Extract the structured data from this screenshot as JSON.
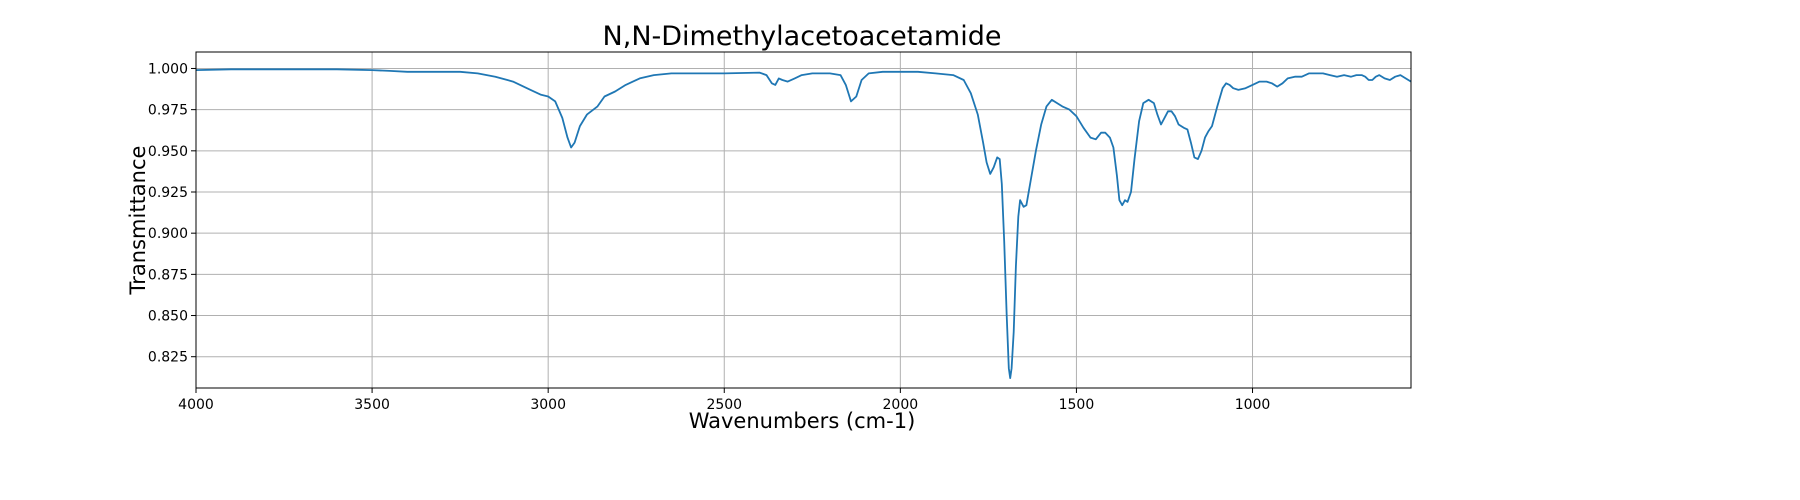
{
  "chart_data": {
    "type": "line",
    "title": "N,N-Dimethylacetoacetamide",
    "xlabel": "Wavenumbers (cm-1)",
    "ylabel": "Transmittance",
    "xlim": [
      4000,
      550
    ],
    "ylim": [
      0.806,
      1.01
    ],
    "x_reversed": true,
    "grid": true,
    "x_ticks": [
      4000,
      3500,
      3000,
      2500,
      2000,
      1500,
      1000
    ],
    "y_ticks": [
      0.825,
      0.85,
      0.875,
      0.9,
      0.925,
      0.95,
      0.975,
      1.0
    ],
    "x_tick_labels": [
      "4000",
      "3500",
      "3000",
      "2500",
      "2000",
      "1500",
      "1000"
    ],
    "y_tick_labels": [
      "0.825",
      "0.850",
      "0.875",
      "0.900",
      "0.925",
      "0.950",
      "0.975",
      "1.000"
    ],
    "series": [
      {
        "color": "#1f77b4",
        "points": [
          [
            4000,
            0.999
          ],
          [
            3900,
            0.9995
          ],
          [
            3800,
            0.9995
          ],
          [
            3700,
            0.9995
          ],
          [
            3600,
            0.9995
          ],
          [
            3500,
            0.999
          ],
          [
            3450,
            0.9985
          ],
          [
            3400,
            0.998
          ],
          [
            3350,
            0.998
          ],
          [
            3300,
            0.998
          ],
          [
            3250,
            0.998
          ],
          [
            3200,
            0.997
          ],
          [
            3150,
            0.995
          ],
          [
            3100,
            0.992
          ],
          [
            3050,
            0.987
          ],
          [
            3020,
            0.984
          ],
          [
            3000,
            0.983
          ],
          [
            2980,
            0.98
          ],
          [
            2960,
            0.97
          ],
          [
            2945,
            0.958
          ],
          [
            2935,
            0.952
          ],
          [
            2925,
            0.955
          ],
          [
            2910,
            0.965
          ],
          [
            2890,
            0.972
          ],
          [
            2860,
            0.977
          ],
          [
            2840,
            0.983
          ],
          [
            2810,
            0.986
          ],
          [
            2780,
            0.99
          ],
          [
            2740,
            0.994
          ],
          [
            2700,
            0.996
          ],
          [
            2650,
            0.997
          ],
          [
            2600,
            0.997
          ],
          [
            2500,
            0.997
          ],
          [
            2400,
            0.9975
          ],
          [
            2380,
            0.996
          ],
          [
            2365,
            0.991
          ],
          [
            2355,
            0.99
          ],
          [
            2345,
            0.994
          ],
          [
            2335,
            0.993
          ],
          [
            2320,
            0.992
          ],
          [
            2300,
            0.994
          ],
          [
            2280,
            0.996
          ],
          [
            2250,
            0.997
          ],
          [
            2200,
            0.997
          ],
          [
            2170,
            0.996
          ],
          [
            2155,
            0.99
          ],
          [
            2140,
            0.98
          ],
          [
            2125,
            0.983
          ],
          [
            2110,
            0.993
          ],
          [
            2090,
            0.997
          ],
          [
            2050,
            0.998
          ],
          [
            2000,
            0.998
          ],
          [
            1950,
            0.998
          ],
          [
            1900,
            0.997
          ],
          [
            1850,
            0.996
          ],
          [
            1820,
            0.993
          ],
          [
            1800,
            0.985
          ],
          [
            1780,
            0.972
          ],
          [
            1765,
            0.955
          ],
          [
            1755,
            0.943
          ],
          [
            1745,
            0.936
          ],
          [
            1735,
            0.94
          ],
          [
            1725,
            0.946
          ],
          [
            1718,
            0.945
          ],
          [
            1712,
            0.93
          ],
          [
            1705,
            0.895
          ],
          [
            1698,
            0.85
          ],
          [
            1692,
            0.818
          ],
          [
            1688,
            0.812
          ],
          [
            1684,
            0.818
          ],
          [
            1678,
            0.84
          ],
          [
            1672,
            0.88
          ],
          [
            1665,
            0.91
          ],
          [
            1660,
            0.92
          ],
          [
            1650,
            0.916
          ],
          [
            1642,
            0.917
          ],
          [
            1630,
            0.932
          ],
          [
            1615,
            0.95
          ],
          [
            1600,
            0.966
          ],
          [
            1585,
            0.977
          ],
          [
            1570,
            0.981
          ],
          [
            1555,
            0.979
          ],
          [
            1540,
            0.977
          ],
          [
            1520,
            0.975
          ],
          [
            1500,
            0.971
          ],
          [
            1480,
            0.964
          ],
          [
            1460,
            0.958
          ],
          [
            1445,
            0.957
          ],
          [
            1430,
            0.961
          ],
          [
            1418,
            0.961
          ],
          [
            1405,
            0.958
          ],
          [
            1395,
            0.952
          ],
          [
            1385,
            0.935
          ],
          [
            1378,
            0.92
          ],
          [
            1370,
            0.917
          ],
          [
            1362,
            0.92
          ],
          [
            1355,
            0.919
          ],
          [
            1345,
            0.925
          ],
          [
            1335,
            0.945
          ],
          [
            1322,
            0.968
          ],
          [
            1310,
            0.979
          ],
          [
            1295,
            0.981
          ],
          [
            1280,
            0.979
          ],
          [
            1270,
            0.972
          ],
          [
            1260,
            0.966
          ],
          [
            1250,
            0.97
          ],
          [
            1240,
            0.974
          ],
          [
            1230,
            0.974
          ],
          [
            1220,
            0.971
          ],
          [
            1210,
            0.966
          ],
          [
            1195,
            0.964
          ],
          [
            1185,
            0.963
          ],
          [
            1175,
            0.955
          ],
          [
            1165,
            0.946
          ],
          [
            1155,
            0.945
          ],
          [
            1145,
            0.95
          ],
          [
            1135,
            0.958
          ],
          [
            1125,
            0.962
          ],
          [
            1115,
            0.965
          ],
          [
            1100,
            0.977
          ],
          [
            1085,
            0.988
          ],
          [
            1075,
            0.991
          ],
          [
            1065,
            0.99
          ],
          [
            1055,
            0.988
          ],
          [
            1040,
            0.987
          ],
          [
            1020,
            0.988
          ],
          [
            1000,
            0.99
          ],
          [
            980,
            0.992
          ],
          [
            960,
            0.992
          ],
          [
            945,
            0.991
          ],
          [
            930,
            0.989
          ],
          [
            915,
            0.991
          ],
          [
            900,
            0.994
          ],
          [
            880,
            0.995
          ],
          [
            860,
            0.995
          ],
          [
            840,
            0.997
          ],
          [
            820,
            0.997
          ],
          [
            800,
            0.997
          ],
          [
            780,
            0.996
          ],
          [
            760,
            0.995
          ],
          [
            740,
            0.996
          ],
          [
            720,
            0.995
          ],
          [
            705,
            0.996
          ],
          [
            690,
            0.996
          ],
          [
            680,
            0.995
          ],
          [
            670,
            0.993
          ],
          [
            660,
            0.993
          ],
          [
            650,
            0.995
          ],
          [
            640,
            0.996
          ],
          [
            625,
            0.994
          ],
          [
            610,
            0.993
          ],
          [
            595,
            0.995
          ],
          [
            580,
            0.996
          ],
          [
            565,
            0.994
          ],
          [
            550,
            0.992
          ]
        ]
      }
    ]
  }
}
